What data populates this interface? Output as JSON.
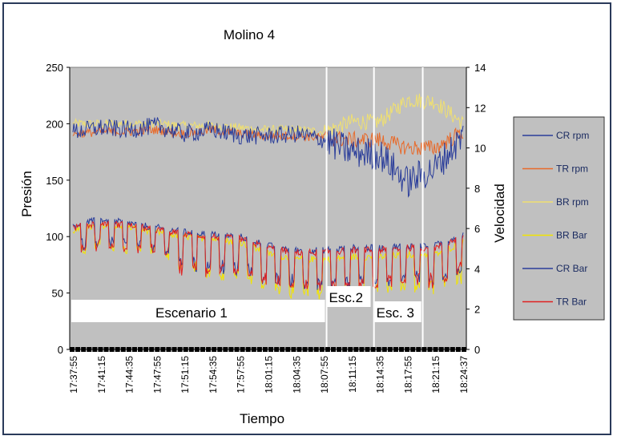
{
  "chart_data": {
    "type": "line",
    "title": "Molino 4",
    "xlabel": "Tiempo",
    "ylabel": "Presión",
    "y2label": "Velocidad",
    "ylim": [
      0,
      250
    ],
    "y2lim": [
      0,
      14
    ],
    "yticks": [
      0,
      50,
      100,
      150,
      200,
      250
    ],
    "y2ticks": [
      0,
      2,
      4,
      6,
      8,
      10,
      12,
      14
    ],
    "grid": false,
    "legend_position": "right",
    "categories": [
      "17:37:55",
      "17:41:15",
      "17:44:35",
      "17:47:55",
      "17:51:15",
      "17:54:35",
      "17:57:55",
      "18:01:15",
      "18:04:35",
      "18:07:55",
      "18:11:15",
      "18:14:35",
      "18:17:55",
      "18:21:15",
      "18:24:37"
    ],
    "scenarios": [
      {
        "label": "Escenario 1",
        "start_index": 0,
        "end_index": 9.1
      },
      {
        "label": "Esc.2",
        "start_index": 9.1,
        "end_index": 10.8
      },
      {
        "label": "Esc. 3",
        "start_index": 10.8,
        "end_index": 12.55
      }
    ],
    "series": [
      {
        "name": "CR rpm",
        "color": "#2a3d9a",
        "axis": "secondary",
        "values": [
          10.8,
          11.0,
          10.9,
          11.1,
          10.7,
          10.9,
          10.6,
          10.6,
          10.7,
          10.4,
          9.8,
          9.7,
          8.3,
          9.0,
          10.6
        ]
      },
      {
        "name": "TR rpm",
        "color": "#e86a2a",
        "axis": "secondary",
        "values": [
          10.7,
          10.8,
          10.8,
          10.9,
          10.7,
          10.9,
          10.7,
          10.6,
          10.6,
          10.5,
          10.4,
          10.4,
          10.0,
          10.0,
          10.8
        ]
      },
      {
        "name": "BR rpm",
        "color": "#f0e070",
        "axis": "secondary",
        "values": [
          11.2,
          11.2,
          11.2,
          11.2,
          11.1,
          11.1,
          11.0,
          10.9,
          10.9,
          10.8,
          11.3,
          11.3,
          12.4,
          12.3,
          11.2
        ]
      },
      {
        "name": "BR Bar",
        "color": "#f2e400",
        "axis": "primary",
        "values": [
          105,
          110,
          108,
          104,
          100,
          98,
          95,
          85,
          80,
          80,
          82,
          82,
          84,
          84,
          95
        ]
      },
      {
        "name": "CR Bar",
        "color": "#2a3d9a",
        "axis": "primary",
        "values": [
          110,
          115,
          112,
          108,
          104,
          102,
          100,
          92,
          88,
          88,
          90,
          90,
          92,
          92,
          102
        ]
      },
      {
        "name": "TR Bar",
        "color": "#e02020",
        "axis": "primary",
        "values": [
          108,
          112,
          110,
          106,
          102,
          100,
          98,
          90,
          86,
          86,
          88,
          88,
          90,
          90,
          100
        ]
      }
    ]
  }
}
